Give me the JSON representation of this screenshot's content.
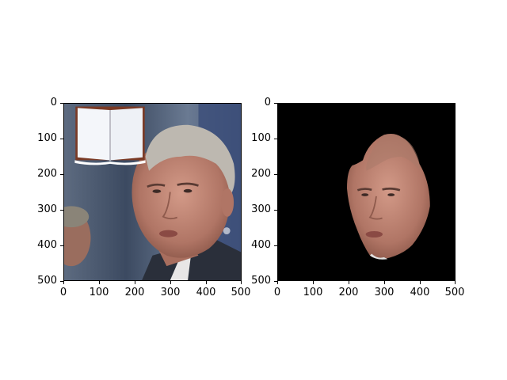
{
  "figure": {
    "panels": [
      {
        "id": "original-image",
        "content": "photo",
        "xticks": [
          "0",
          "100",
          "200",
          "300",
          "400",
          "500"
        ],
        "yticks": [
          "0",
          "100",
          "200",
          "300",
          "400",
          "500"
        ],
        "xlim": [
          0,
          500
        ],
        "ylim": [
          500,
          0
        ]
      },
      {
        "id": "segmented-face",
        "content": "mask",
        "xticks": [
          "0",
          "100",
          "200",
          "300",
          "400",
          "500"
        ],
        "yticks": [
          "0",
          "100",
          "200",
          "300",
          "400",
          "500"
        ],
        "xlim": [
          0,
          500
        ],
        "ylim": [
          500,
          0
        ]
      }
    ]
  },
  "colors": {
    "mask_background": "#000000",
    "skin": "#c48a78",
    "hair": "#bdb8b0",
    "suit": "#2a2f3a",
    "flag": "#3b4d79"
  },
  "icons": {
    "overlay": "open-book-icon"
  }
}
